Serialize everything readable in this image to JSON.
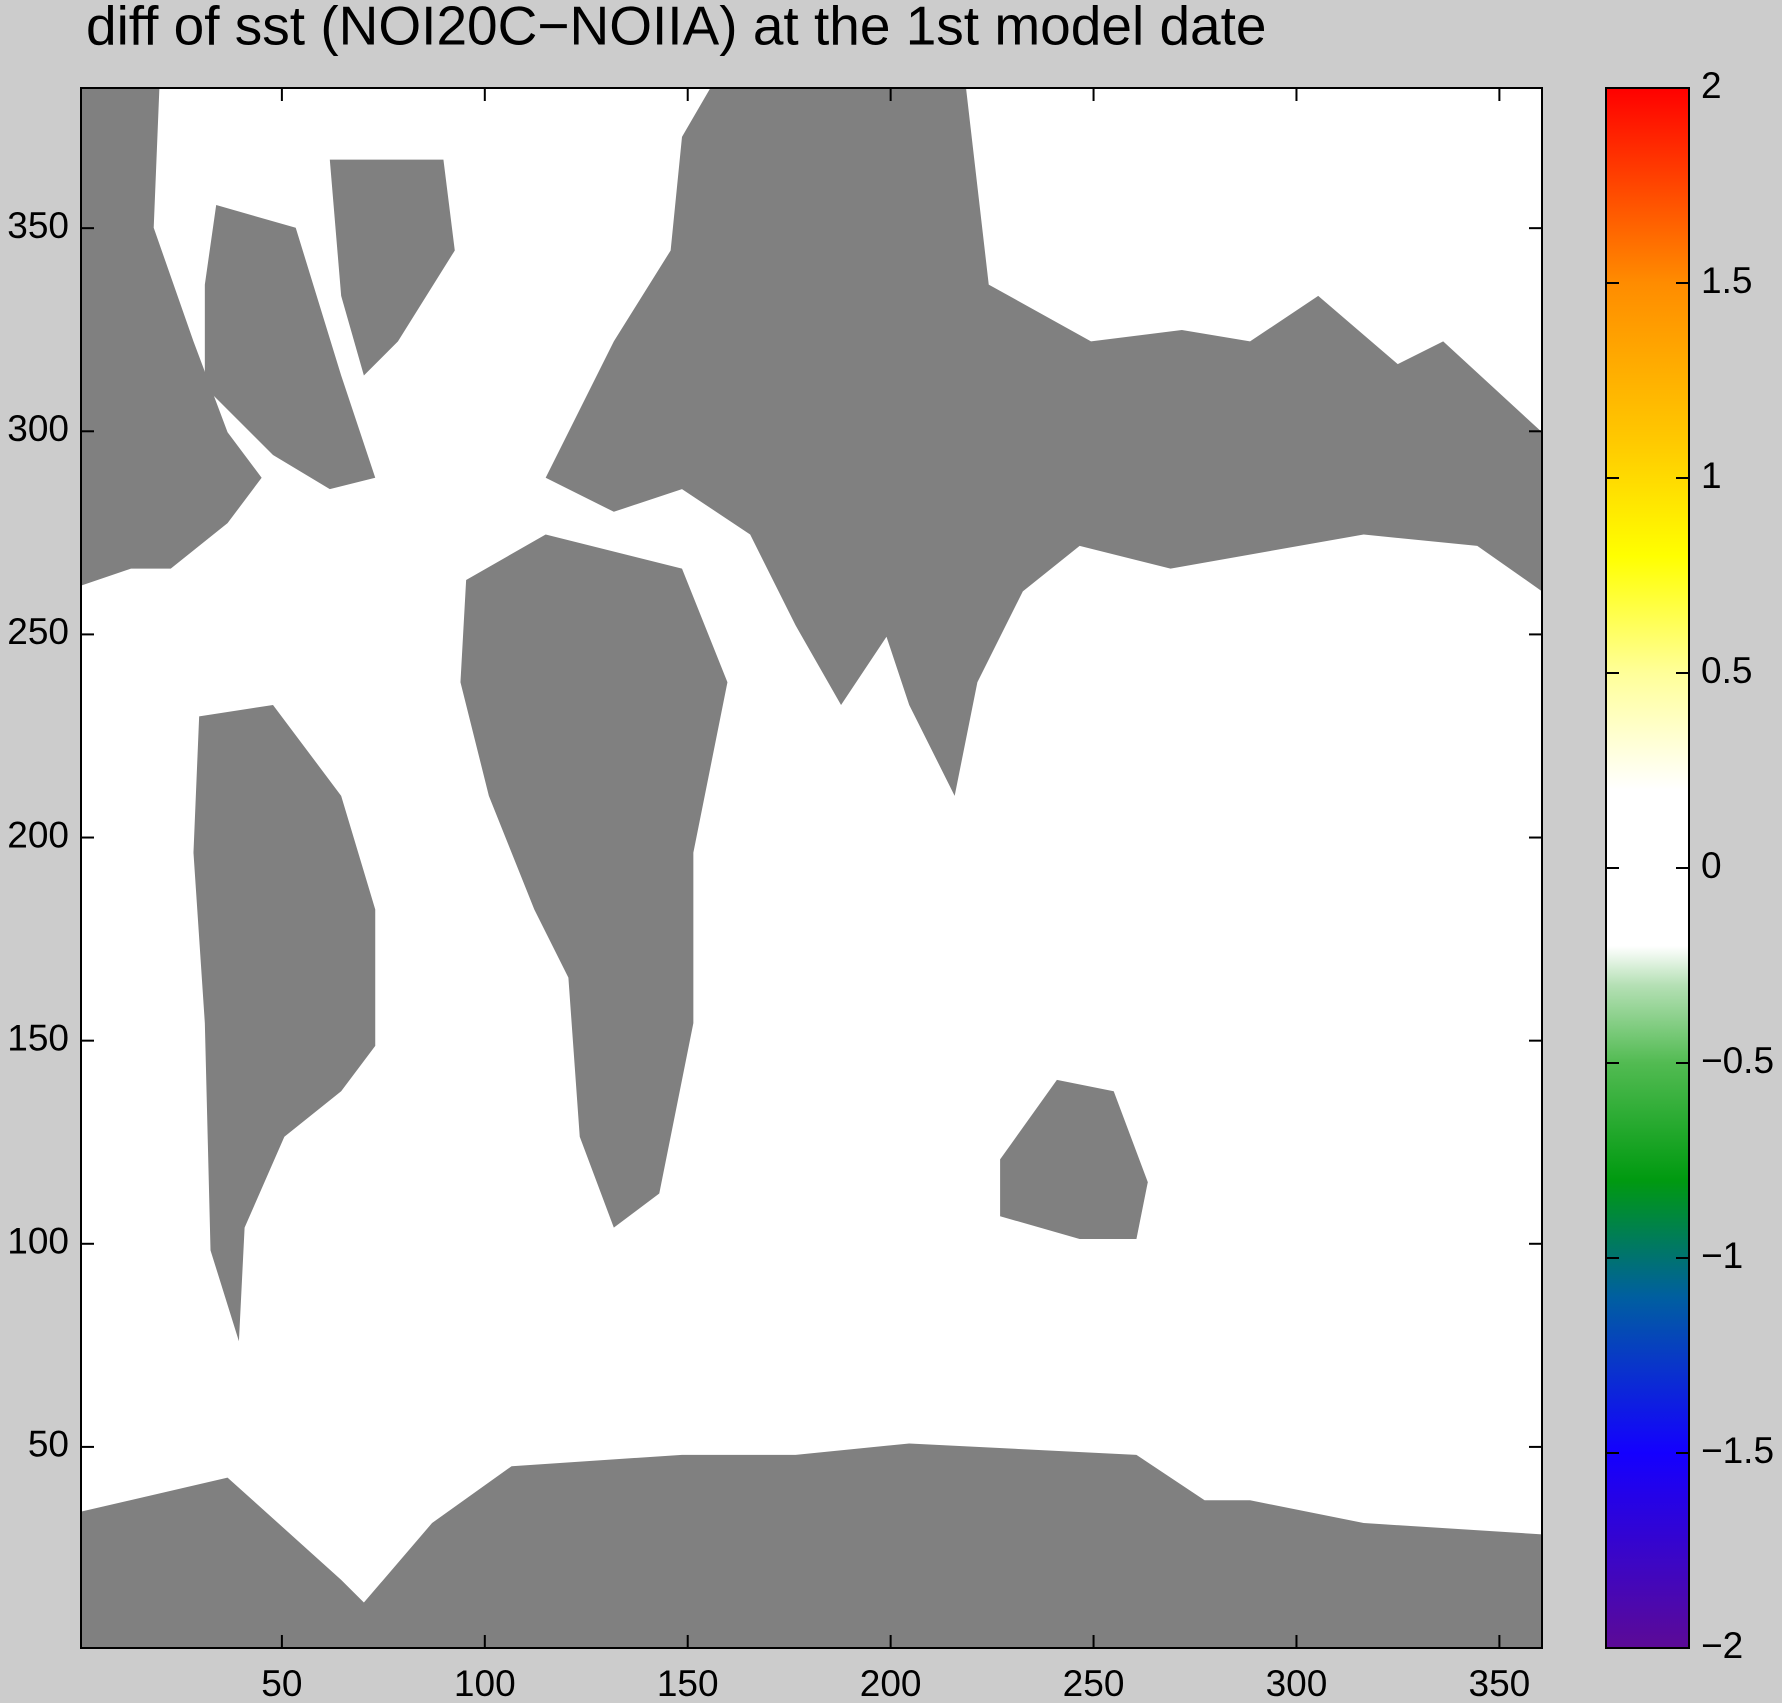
{
  "chart_data": {
    "type": "heatmap",
    "title": "diff of sst  (NOI20C−NOIIA) at the 1st model date",
    "xlim": [
      0.5,
      360.5
    ],
    "ylim": [
      0.5,
      384.5
    ],
    "xticks": [
      50,
      100,
      150,
      200,
      250,
      300,
      350
    ],
    "yticks": [
      50,
      100,
      150,
      200,
      250,
      300,
      350
    ],
    "land_color": "#808080",
    "colorbar": {
      "clim": [
        -2,
        2
      ],
      "ticks": [
        {
          "value": -2,
          "label": "−2"
        },
        {
          "value": -1.5,
          "label": "−1.5"
        },
        {
          "value": -1,
          "label": "−1"
        },
        {
          "value": -0.5,
          "label": "−0.5"
        },
        0,
        0.5,
        1,
        1.5,
        2
      ],
      "colorscale": [
        {
          "value": -2,
          "color": "#5c0a96"
        },
        {
          "value": -1.5,
          "color": "#1400ff"
        },
        {
          "value": -1.1,
          "color": "#005fa0"
        },
        {
          "value": -0.8,
          "color": "#009a10"
        },
        {
          "value": -0.5,
          "color": "#52bb52"
        },
        {
          "value": -0.3,
          "color": "#b5e0b5"
        },
        {
          "value": -0.2,
          "color": "#ffffff"
        },
        {
          "value": 0.2,
          "color": "#ffffff"
        },
        {
          "value": 0.5,
          "color": "#ffff99"
        },
        {
          "value": 0.8,
          "color": "#ffff00"
        },
        {
          "value": 1.1,
          "color": "#ffc800"
        },
        {
          "value": 1.5,
          "color": "#ff8c00"
        },
        {
          "value": 2,
          "color": "#ff0000"
        }
      ]
    }
  }
}
